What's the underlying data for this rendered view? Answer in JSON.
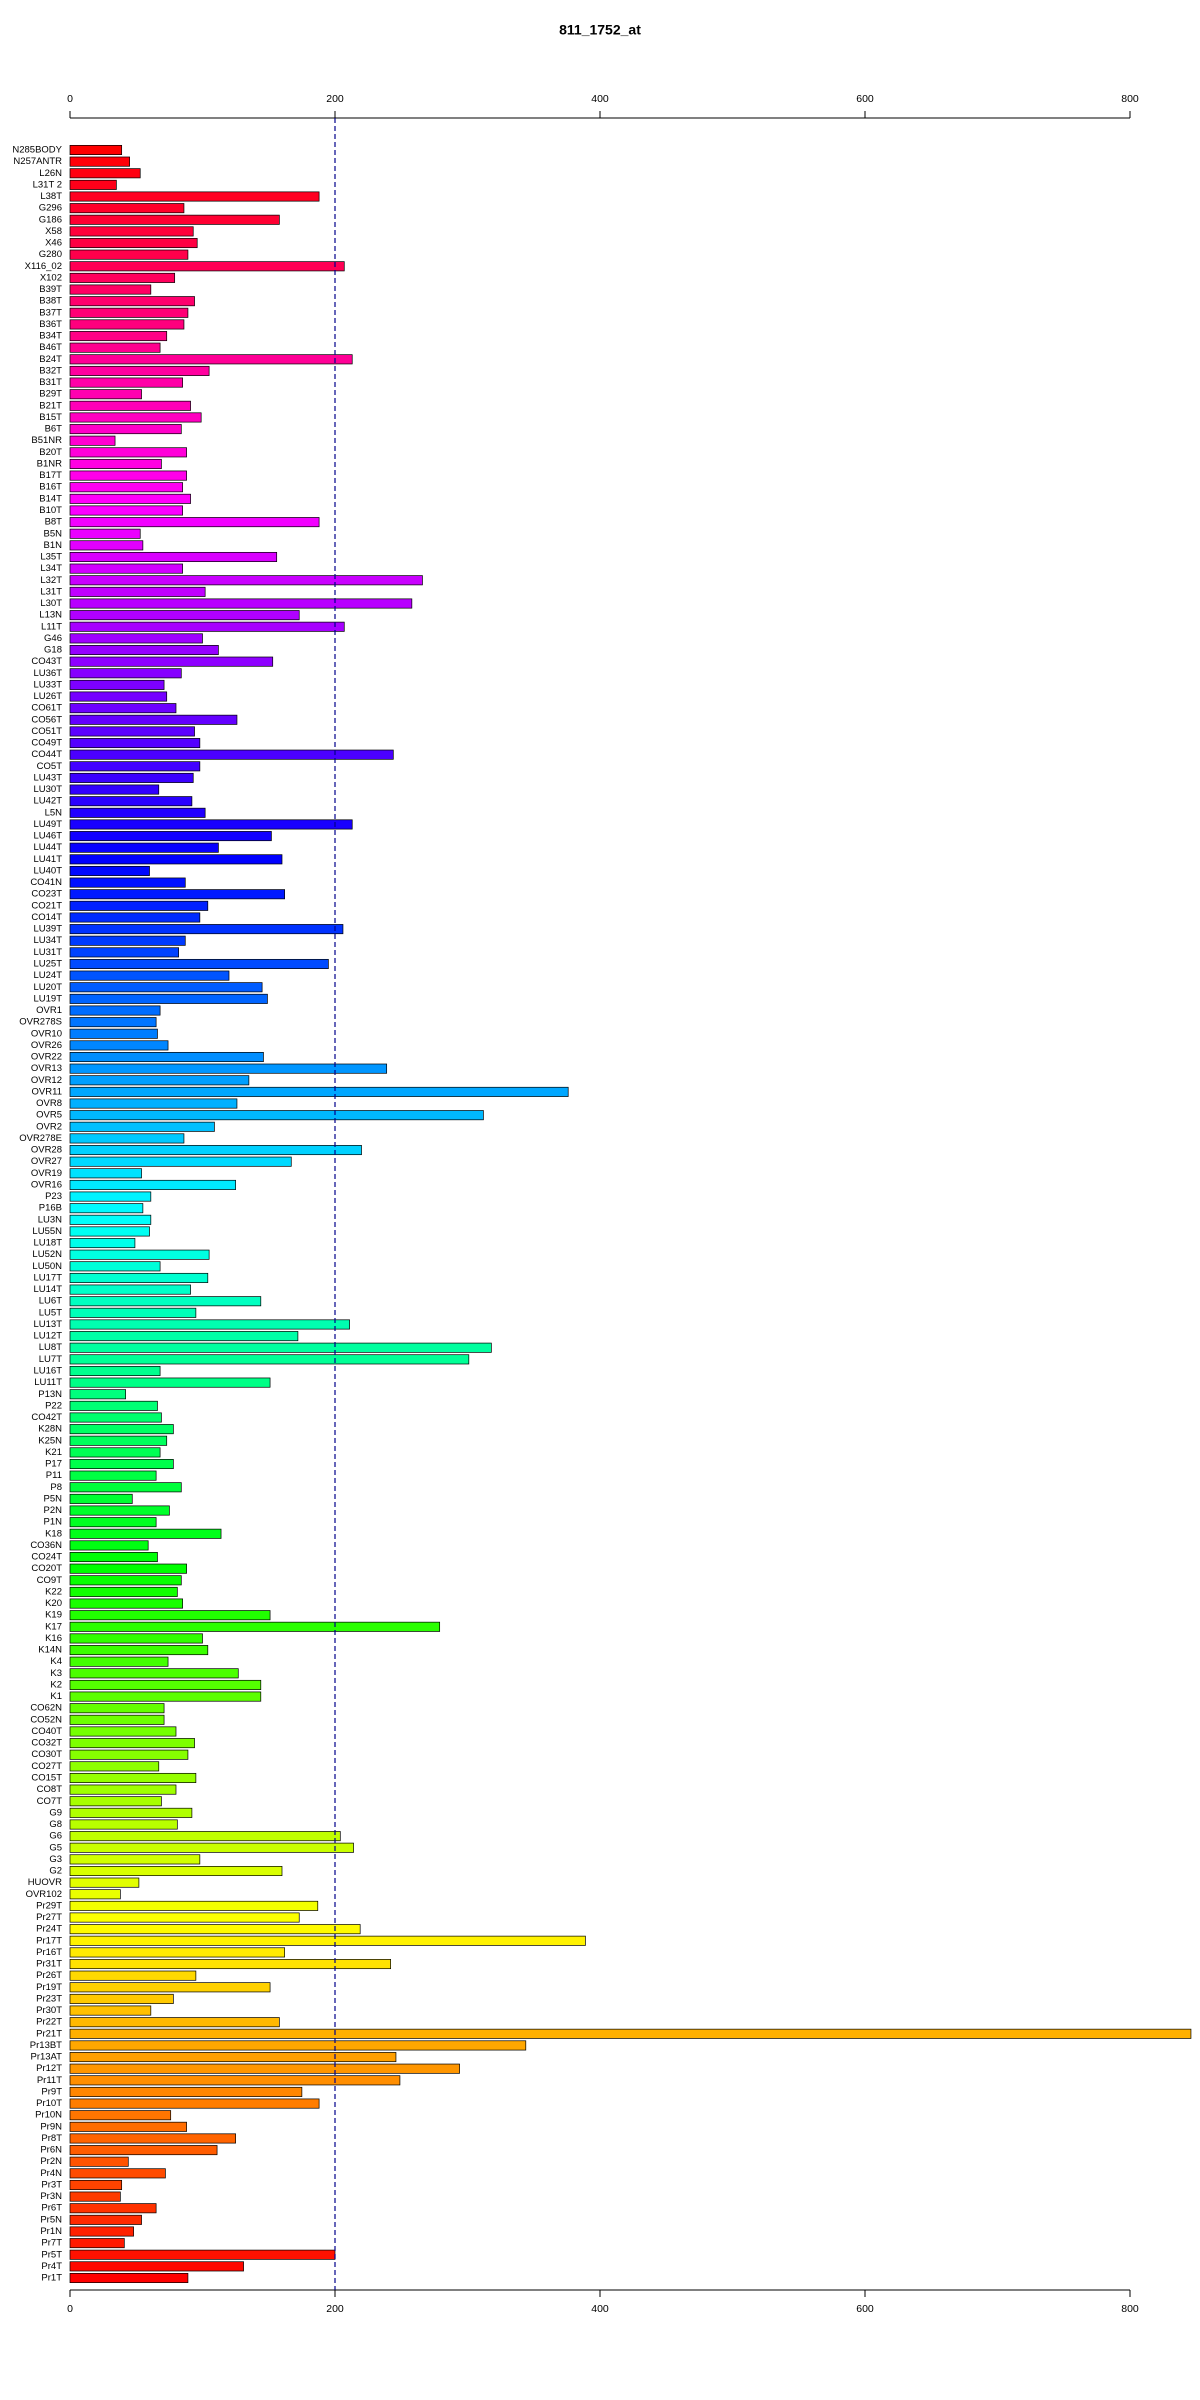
{
  "chart_data": {
    "type": "bar",
    "orientation": "horizontal",
    "title": "811_1752_at",
    "categories": [
      "N285BODY",
      "N257ANTR",
      "L26N",
      "L31T 2",
      "L38T",
      "G296",
      "G186",
      "X58",
      "X46",
      "G280",
      "X116_02",
      "X102",
      "B39T",
      "B38T",
      "B37T",
      "B36T",
      "B34T",
      "B46T",
      "B24T",
      "B32T",
      "B31T",
      "B29T",
      "B21T",
      "B15T",
      "B6T",
      "B51NR",
      "B20T",
      "B1NR",
      "B17T",
      "B16T",
      "B14T",
      "B10T",
      "B8T",
      "B5N",
      "B1N",
      "L35T",
      "L34T",
      "L32T",
      "L31T",
      "L30T",
      "L13N",
      "L11T",
      "G46",
      "G18",
      "CO43T",
      "LU36T",
      "LU33T",
      "LU26T",
      "CO61T",
      "CO56T",
      "CO51T",
      "CO49T",
      "CO44T",
      "CO5T",
      "LU43T",
      "LU30T",
      "LU42T",
      "L5N",
      "LU49T",
      "LU46T",
      "LU44T",
      "LU41T",
      "LU40T",
      "CO41N",
      "CO23T",
      "CO21T",
      "CO14T",
      "LU39T",
      "LU34T",
      "LU31T",
      "LU25T",
      "LU24T",
      "LU20T",
      "LU19T",
      "OVR1",
      "OVR278S",
      "OVR10",
      "OVR26",
      "OVR22",
      "OVR13",
      "OVR12",
      "OVR11",
      "OVR8",
      "OVR5",
      "OVR2",
      "OVR278E",
      "OVR28",
      "OVR27",
      "OVR19",
      "OVR16",
      "P23",
      "P16B",
      "LU3N",
      "LU55N",
      "LU18T",
      "LU52N",
      "LU50N",
      "LU17T",
      "LU14T",
      "LU6T",
      "LU5T",
      "LU13T",
      "LU12T",
      "LU8T",
      "LU7T",
      "LU16T",
      "LU11T",
      "P13N",
      "P22",
      "CO42T",
      "K28N",
      "K25N",
      "K21",
      "P17",
      "P11",
      "P8",
      "P5N",
      "P2N",
      "P1N",
      "K18",
      "CO36N",
      "CO24T",
      "CO20T",
      "CO9T",
      "K22",
      "K20",
      "K19",
      "K17",
      "K16",
      "K14N",
      "K4",
      "K3",
      "K2",
      "K1",
      "CO62N",
      "CO52N",
      "CO40T",
      "CO32T",
      "CO30T",
      "CO27T",
      "CO15T",
      "CO8T",
      "CO7T",
      "G9",
      "G8",
      "G6",
      "G5",
      "G3",
      "G2",
      "HUOVR",
      "OVR102",
      "Pr29T",
      "Pr27T",
      "Pr24T",
      "Pr17T",
      "Pr16T",
      "Pr31T",
      "Pr26T",
      "Pr19T",
      "Pr23T",
      "Pr30T",
      "Pr22T",
      "Pr21T",
      "Pr13BT",
      "Pr13AT",
      "Pr12T",
      "Pr11T",
      "Pr9T",
      "Pr10T",
      "Pr10N",
      "Pr9N",
      "Pr8T",
      "Pr6N",
      "Pr2N",
      "Pr4N",
      "Pr3T",
      "Pr3N",
      "Pr6T",
      "Pr5N",
      "Pr1N",
      "Pr7T",
      "Pr5T",
      "Pr4T",
      "Pr1T"
    ],
    "values": [
      39,
      45,
      53,
      35,
      188,
      86,
      158,
      93,
      96,
      89,
      207,
      79,
      61,
      94,
      89,
      86,
      73,
      68,
      213,
      105,
      85,
      54,
      91,
      99,
      84,
      34,
      88,
      69,
      88,
      85,
      91,
      85,
      188,
      53,
      55,
      156,
      85,
      266,
      102,
      258,
      173,
      207,
      100,
      112,
      153,
      84,
      71,
      73,
      80,
      126,
      94,
      98,
      244,
      98,
      93,
      67,
      92,
      102,
      213,
      152,
      112,
      160,
      60,
      87,
      162,
      104,
      98,
      206,
      87,
      82,
      195,
      120,
      145,
      149,
      68,
      65,
      66,
      74,
      146,
      239,
      135,
      376,
      126,
      312,
      109,
      86,
      220,
      167,
      54,
      125,
      61,
      55,
      61,
      60,
      49,
      105,
      68,
      104,
      91,
      144,
      95,
      211,
      172,
      318,
      301,
      68,
      151,
      42,
      66,
      69,
      78,
      73,
      68,
      78,
      65,
      84,
      47,
      75,
      65,
      114,
      59,
      66,
      88,
      84,
      81,
      85,
      151,
      279,
      100,
      104,
      74,
      127,
      144,
      144,
      71,
      71,
      80,
      94,
      89,
      67,
      95,
      80,
      69,
      92,
      81,
      204,
      214,
      98,
      160,
      52,
      38,
      187,
      173,
      219,
      389,
      162,
      242,
      95,
      151,
      78,
      61,
      158,
      846,
      344,
      246,
      294,
      249,
      175,
      188,
      76,
      88,
      125,
      111,
      44,
      72,
      39,
      38,
      65,
      54,
      48,
      41,
      200,
      131,
      89
    ],
    "colors": [
      "#ff0000",
      "#ff0008",
      "#ff0011",
      "#ff0019",
      "#ff0021",
      "#ff002a",
      "#ff0032",
      "#ff003b",
      "#ff0043",
      "#ff004b",
      "#ff0054",
      "#ff005c",
      "#ff0064",
      "#ff006d",
      "#ff0075",
      "#ff007d",
      "#ff0086",
      "#ff008e",
      "#ff0096",
      "#ff009f",
      "#ff00a7",
      "#ff00b0",
      "#ff00b8",
      "#ff00c0",
      "#ff00c9",
      "#ff00d1",
      "#ff00d9",
      "#ff00e2",
      "#ff00ea",
      "#ff00f2",
      "#ff00fb",
      "#fb00ff",
      "#f200ff",
      "#ea00ff",
      "#e200ff",
      "#d900ff",
      "#d100ff",
      "#c900ff",
      "#c000ff",
      "#b800ff",
      "#b000ff",
      "#a700ff",
      "#9f00ff",
      "#9600ff",
      "#8e00ff",
      "#8600ff",
      "#7d00ff",
      "#7500ff",
      "#6d00ff",
      "#6400ff",
      "#5c00ff",
      "#5400ff",
      "#4b00ff",
      "#4300ff",
      "#3b00ff",
      "#3200ff",
      "#2a00ff",
      "#2100ff",
      "#1900ff",
      "#1100ff",
      "#0800ff",
      "#0000ff",
      "#0008ff",
      "#0011ff",
      "#0019ff",
      "#0021ff",
      "#002aff",
      "#0032ff",
      "#003bff",
      "#0043ff",
      "#004bff",
      "#0054ff",
      "#005cff",
      "#0064ff",
      "#006dff",
      "#0075ff",
      "#007dff",
      "#0086ff",
      "#008eff",
      "#0096ff",
      "#009fff",
      "#00a7ff",
      "#00b0ff",
      "#00b8ff",
      "#00c0ff",
      "#00c9ff",
      "#00d1ff",
      "#00d9ff",
      "#00e2ff",
      "#00eaff",
      "#00f2ff",
      "#00fbff",
      "#00fffb",
      "#00fff2",
      "#00ffea",
      "#00ffe2",
      "#00ffd9",
      "#00ffd1",
      "#00ffc9",
      "#00ffc0",
      "#00ffb8",
      "#00ffb0",
      "#00ffa7",
      "#00ff9f",
      "#00ff96",
      "#00ff8e",
      "#00ff86",
      "#00ff7d",
      "#00ff75",
      "#00ff6d",
      "#00ff64",
      "#00ff5c",
      "#00ff54",
      "#00ff4b",
      "#00ff43",
      "#00ff3b",
      "#00ff32",
      "#00ff2a",
      "#00ff21",
      "#00ff19",
      "#00ff11",
      "#00ff08",
      "#00ff00",
      "#08ff00",
      "#11ff00",
      "#19ff00",
      "#21ff00",
      "#2aff00",
      "#32ff00",
      "#3bff00",
      "#43ff00",
      "#4bff00",
      "#54ff00",
      "#5cff00",
      "#64ff00",
      "#6dff00",
      "#75ff00",
      "#7dff00",
      "#86ff00",
      "#8eff00",
      "#96ff00",
      "#9fff00",
      "#a7ff00",
      "#b0ff00",
      "#b8ff00",
      "#c0ff00",
      "#c9ff00",
      "#d1ff00",
      "#d9ff00",
      "#e2ff00",
      "#eaff00",
      "#f2ff00",
      "#fbff00",
      "#fffb00",
      "#fff200",
      "#ffea00",
      "#ffe200",
      "#ffd900",
      "#ffd100",
      "#ffc900",
      "#ffc000",
      "#ffb800",
      "#ffb000",
      "#ffa700",
      "#ff9f00",
      "#ff9600",
      "#ff8e00",
      "#ff8600",
      "#ff7d00",
      "#ff7500",
      "#ff6d00",
      "#ff6400",
      "#ff5c00",
      "#ff5400",
      "#ff4b00",
      "#ff4300",
      "#ff3b00",
      "#ff3200",
      "#ff2a00",
      "#ff2100",
      "#ff1900",
      "#ff1100",
      "#ff0800",
      "#ff0000"
    ],
    "xlim": [
      0,
      800
    ],
    "xticks": [
      0,
      200,
      400,
      600,
      800
    ],
    "vline": 200,
    "vline_color": "#00008b"
  }
}
